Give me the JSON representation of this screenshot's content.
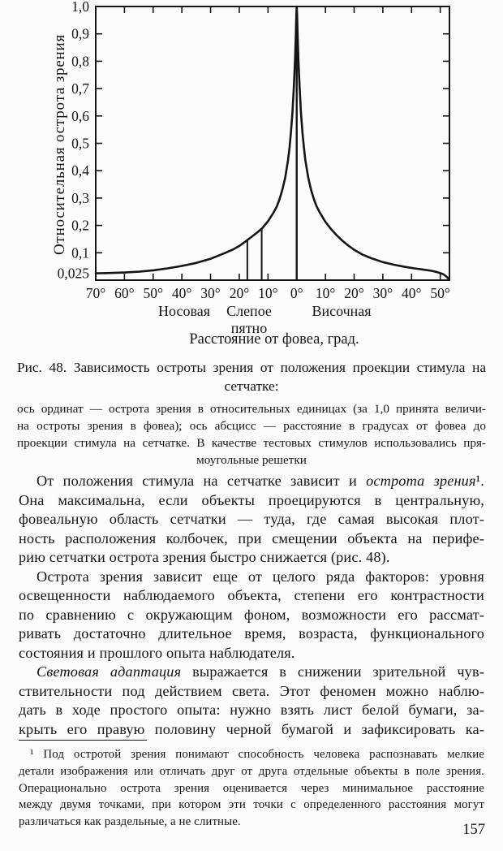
{
  "page_number": "157",
  "chart_data": {
    "type": "line",
    "title": "",
    "xlabel": "Расстояние от фовеа, град.",
    "ylabel": "Относительная острота зрения",
    "grid": false,
    "x_axis": {
      "range_deg": [
        -70,
        53.2
      ],
      "tick_degrees": [
        -70,
        -60,
        -50,
        -40,
        -30,
        -20,
        -10,
        0,
        10,
        20,
        30,
        40,
        50
      ],
      "tick_labels": [
        "70°",
        "60°",
        "50°",
        "40°",
        "30°",
        "20°",
        "10°",
        "0°",
        "10°",
        "20°",
        "30°",
        "40°",
        "50°"
      ],
      "regions": [
        {
          "label": "Носовая"
        },
        {
          "label": "Слепое пятно",
          "lines": [
            "Слепое",
            "пятно"
          ]
        },
        {
          "label": "Височная"
        }
      ]
    },
    "y_axis": {
      "range": [
        0,
        1.0
      ],
      "tick_values": [
        1.0,
        0.9,
        0.8,
        0.7,
        0.6,
        0.5,
        0.4,
        0.3,
        0.2,
        0.1,
        0.025
      ],
      "tick_labels": [
        "1,0",
        "0,9",
        "0,8",
        "0,7",
        "0,6",
        "0,5",
        "0,4",
        "0,3",
        "0,2",
        "0,1",
        "0,025"
      ]
    },
    "series": [
      {
        "name": "острота зрения",
        "points": [
          [
            -70,
            0.025
          ],
          [
            -65,
            0.026
          ],
          [
            -60,
            0.028
          ],
          [
            -55,
            0.031
          ],
          [
            -50,
            0.036
          ],
          [
            -45,
            0.043
          ],
          [
            -40,
            0.052
          ],
          [
            -35,
            0.063
          ],
          [
            -30,
            0.078
          ],
          [
            -25,
            0.099
          ],
          [
            -22,
            0.113
          ],
          [
            -20,
            0.125
          ],
          [
            -18,
            0.14
          ],
          [
            -16,
            0.156
          ],
          [
            -14,
            0.172
          ],
          [
            -12,
            0.19
          ],
          [
            -10,
            0.215
          ],
          [
            -8,
            0.248
          ],
          [
            -7,
            0.268
          ],
          [
            -6,
            0.295
          ],
          [
            -5,
            0.33
          ],
          [
            -4,
            0.375
          ],
          [
            -3,
            0.44
          ],
          [
            -2.5,
            0.485
          ],
          [
            -2,
            0.54
          ],
          [
            -1.5,
            0.61
          ],
          [
            -1,
            0.705
          ],
          [
            -0.6,
            0.8
          ],
          [
            -0.3,
            0.9
          ],
          [
            -0.12,
            0.97
          ],
          [
            0,
            1.0
          ],
          [
            0.12,
            0.97
          ],
          [
            0.3,
            0.9
          ],
          [
            0.6,
            0.8
          ],
          [
            1,
            0.705
          ],
          [
            1.5,
            0.61
          ],
          [
            2,
            0.54
          ],
          [
            2.5,
            0.485
          ],
          [
            3,
            0.44
          ],
          [
            4,
            0.375
          ],
          [
            5,
            0.33
          ],
          [
            6,
            0.295
          ],
          [
            7,
            0.268
          ],
          [
            8,
            0.248
          ],
          [
            10,
            0.213
          ],
          [
            12,
            0.186
          ],
          [
            14,
            0.163
          ],
          [
            16,
            0.143
          ],
          [
            18,
            0.126
          ],
          [
            20,
            0.111
          ],
          [
            23,
            0.093
          ],
          [
            26,
            0.08
          ],
          [
            30,
            0.066
          ],
          [
            34,
            0.056
          ],
          [
            38,
            0.048
          ],
          [
            41,
            0.043
          ],
          [
            44,
            0.039
          ],
          [
            47,
            0.034
          ],
          [
            49,
            0.029
          ],
          [
            51,
            0.022
          ],
          [
            52.3,
            0.012
          ],
          [
            53.1,
            0.002
          ]
        ]
      }
    ],
    "blind_spot_lines": [
      {
        "deg": -17.2,
        "top": 0.147
      },
      {
        "deg": -12.2,
        "top": 0.188
      }
    ],
    "fovea_line": {
      "deg": 0,
      "top": 1.0
    },
    "ink_color": "#151515"
  },
  "figure_caption": {
    "main_lines": [
      "Рис. 48. Зависимость остроты зрения от положения проекции стимула на",
      "сетчатке:"
    ],
    "small_lines": [
      "ось ординат — острота зрения в относительных единицах (за 1,0 принята величи-",
      "на остроты зрения в фовеа); ось абсцисс — расстояние в градусах от фовеа до",
      "проекции стимула на сетчатке. В качестве тестовых стимулов использовались пря-",
      "моугольные решетки"
    ]
  },
  "body": {
    "p1": {
      "l1_pre": "От положения стимула на сетчатке зависит и ",
      "l1_em": "острота зрения",
      "l1_post": "¹.",
      "rest": [
        "Она максимальна, если объекты проецируются в центральную,",
        "фовеальную область сетчатки — туда, где самая высокая плот-",
        "ность расположения колбочек, при смещении объекта на перифе-",
        "рию сетчатки острота зрения быстро снижается (рис. 48)."
      ]
    },
    "p2": {
      "lines": [
        "Острота зрения зависит еще от целого ряда факторов: уровня",
        "освещенности наблюдаемого объекта, степени его контрастности",
        "по сравнению с окружающим фоном, возможности его рассмат-",
        "ривать достаточно длительное время, возраста, функционального",
        "состояния и прошлого опыта наблюдателя."
      ]
    },
    "p3": {
      "l1_em": "Световая адаптация",
      "l1_post": " выражается в снижении зрительной чув-",
      "rest": [
        "ствительности под действием света. Этот феномен можно наблю-",
        "дать в ходе простого опыта: нужно взять лист белой бумаги, за-",
        "крыть его правую половину черной бумагой и зафиксировать ка-"
      ]
    }
  },
  "footnote": {
    "lines": [
      "¹ Под остротой зрения понимают способность человека распознавать мелкие",
      "детали изображения или отличать друг от друга отдельные объекты в поле зрения.",
      "Операционально острота зрения оценивается через минимальное расстояние",
      "между двумя точками, при котором эти точки с определенного расстояния могут",
      "различаться как раздельные, а не слитные."
    ]
  }
}
